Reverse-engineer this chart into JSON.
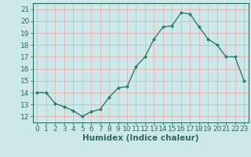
{
  "x": [
    0,
    1,
    2,
    3,
    4,
    5,
    6,
    7,
    8,
    9,
    10,
    11,
    12,
    13,
    14,
    15,
    16,
    17,
    18,
    19,
    20,
    21,
    22,
    23
  ],
  "y": [
    14.0,
    14.0,
    13.1,
    12.8,
    12.5,
    12.0,
    12.4,
    12.6,
    13.6,
    14.4,
    14.5,
    16.2,
    17.0,
    18.5,
    19.5,
    19.6,
    20.7,
    20.6,
    19.5,
    18.5,
    18.0,
    17.0,
    17.0,
    15.0
  ],
  "line_color": "#2d7b6e",
  "marker": "D",
  "marker_size": 2.0,
  "line_width": 1.0,
  "bg_color": "#cce8e8",
  "grid_color": "#e8a8a8",
  "xlabel": "Humidex (Indice chaleur)",
  "xlim": [
    -0.5,
    23.5
  ],
  "ylim": [
    11.5,
    21.5
  ],
  "yticks": [
    12,
    13,
    14,
    15,
    16,
    17,
    18,
    19,
    20,
    21
  ],
  "xticks": [
    0,
    1,
    2,
    3,
    4,
    5,
    6,
    7,
    8,
    9,
    10,
    11,
    12,
    13,
    14,
    15,
    16,
    17,
    18,
    19,
    20,
    21,
    22,
    23
  ],
  "xlabel_fontsize": 7.5,
  "tick_fontsize": 6.5,
  "tick_color": "#2d6b5e",
  "axes_color": "#2d6b5e"
}
